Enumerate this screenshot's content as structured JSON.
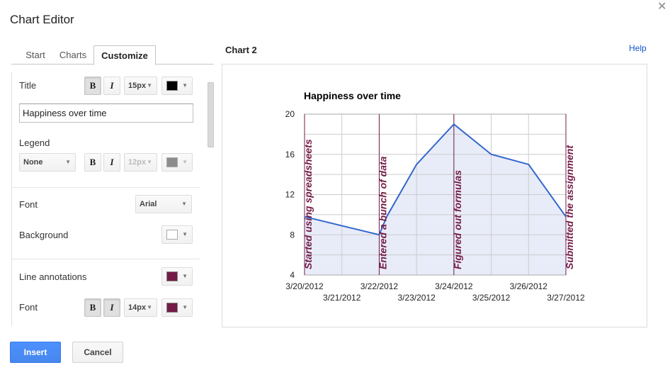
{
  "dialog": {
    "title": "Chart Editor",
    "close_glyph": "✕"
  },
  "tabs": [
    {
      "label": "Start",
      "active": false
    },
    {
      "label": "Charts",
      "active": false
    },
    {
      "label": "Customize",
      "active": true
    }
  ],
  "customize": {
    "title_label": "Title",
    "title_bold": "B",
    "title_italic": "I",
    "title_size": "15px",
    "title_color": "#000000",
    "title_value": "Happiness over time",
    "legend_label": "Legend",
    "legend_position": "None",
    "legend_bold": "B",
    "legend_italic": "I",
    "legend_size": "12px",
    "legend_color": "#8c8c8c",
    "font_label": "Font",
    "font_value": "Arial",
    "background_label": "Background",
    "background_color": "#ffffff",
    "line_annotations_label": "Line annotations",
    "line_annotations_color": "#741b47",
    "annotation_font_label": "Font",
    "annotation_bold": "B",
    "annotation_italic": "I",
    "annotation_size": "14px",
    "annotation_color": "#741b47"
  },
  "preview": {
    "chart_name": "Chart 2",
    "help_label": "Help"
  },
  "buttons": {
    "insert": "Insert",
    "cancel": "Cancel"
  },
  "colors": {
    "line": "#3366cc",
    "area": "#e8ecf8",
    "annotation": "#741b47",
    "primary": "#4d90fe"
  },
  "chart_data": {
    "type": "area",
    "title": "Happiness over time",
    "x": [
      "3/20/2012",
      "3/21/2012",
      "3/22/2012",
      "3/23/2012",
      "3/24/2012",
      "3/25/2012",
      "3/26/2012",
      "3/27/2012"
    ],
    "points": [
      {
        "x": 0.0,
        "y": 9.8
      },
      {
        "x": 2.0,
        "y": 8.0
      },
      {
        "x": 2.2,
        "y": 9.8
      },
      {
        "x": 3.0,
        "y": 15.0
      },
      {
        "x": 4.0,
        "y": 19.0
      },
      {
        "x": 5.0,
        "y": 16.0
      },
      {
        "x": 6.0,
        "y": 15.0
      },
      {
        "x": 7.0,
        "y": 9.8
      }
    ],
    "annotations": [
      {
        "x": 0.0,
        "text": "Started using spreadsheets"
      },
      {
        "x": 2.0,
        "text": "Entered a bunch of data"
      },
      {
        "x": 4.0,
        "text": "Figured out formulas"
      },
      {
        "x": 7.0,
        "text": "Submitted the assignment"
      }
    ],
    "yticks": [
      4,
      8,
      12,
      16,
      20
    ],
    "ylim": [
      4,
      20
    ],
    "xlim": [
      0,
      7
    ],
    "grid": true,
    "legend": "none"
  }
}
